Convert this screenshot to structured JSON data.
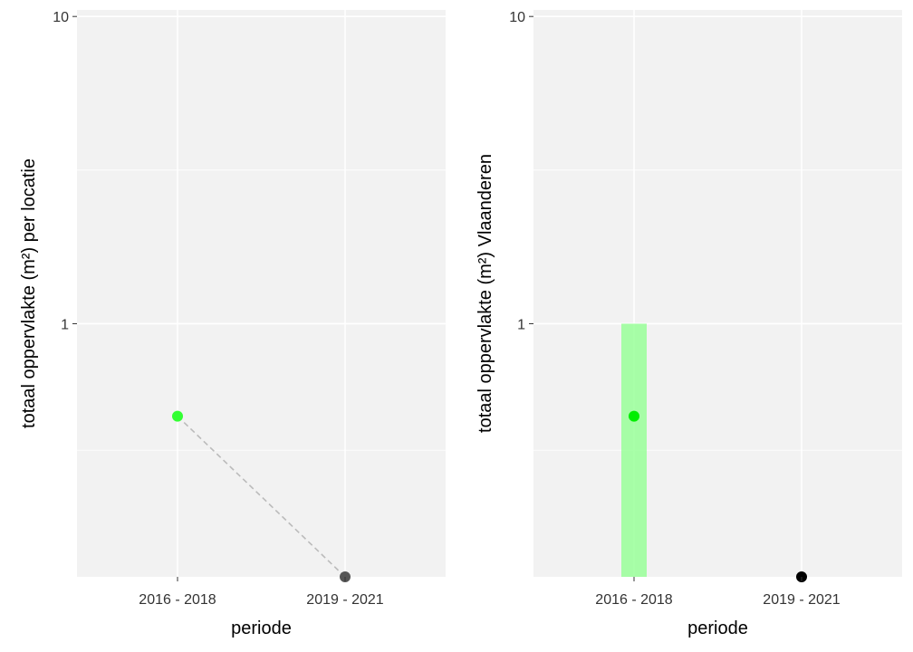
{
  "chart_data": [
    {
      "type": "scatter",
      "x_label": "periode",
      "y_label": "totaal oppervlakte (m²) per locatie",
      "y_scale": "log10",
      "y_range": [
        0.15,
        10.5
      ],
      "y_ticks": [
        {
          "value": 1,
          "label": "1"
        },
        {
          "value": 10,
          "label": "10"
        }
      ],
      "categories": [
        "2016 - 2018",
        "2019 - 2021"
      ],
      "grid": true,
      "points": [
        {
          "x": "2016 - 2018",
          "y": 0.5,
          "color": "#33ff33"
        },
        {
          "x": "2019 - 2021",
          "y": 0.15,
          "color": "#555555"
        }
      ],
      "connector": {
        "style": "dashed",
        "color": "#bbbbbb"
      }
    },
    {
      "type": "scatter",
      "x_label": "periode",
      "y_label": "totaal oppervlakte (m²) Vlaanderen",
      "y_scale": "log10",
      "y_range": [
        0.15,
        10.5
      ],
      "y_ticks": [
        {
          "value": 1,
          "label": "1"
        },
        {
          "value": 10,
          "label": "10"
        }
      ],
      "categories": [
        "2016 - 2018",
        "2019 - 2021"
      ],
      "grid": true,
      "points": [
        {
          "x": "2016 - 2018",
          "y": 0.5,
          "color": "#00ee00"
        },
        {
          "x": "2019 - 2021",
          "y": 0.15,
          "color": "#000000"
        }
      ],
      "intervals": [
        {
          "x": "2016 - 2018",
          "low": 0.15,
          "high": 1,
          "color": "#99ff99"
        }
      ]
    }
  ]
}
